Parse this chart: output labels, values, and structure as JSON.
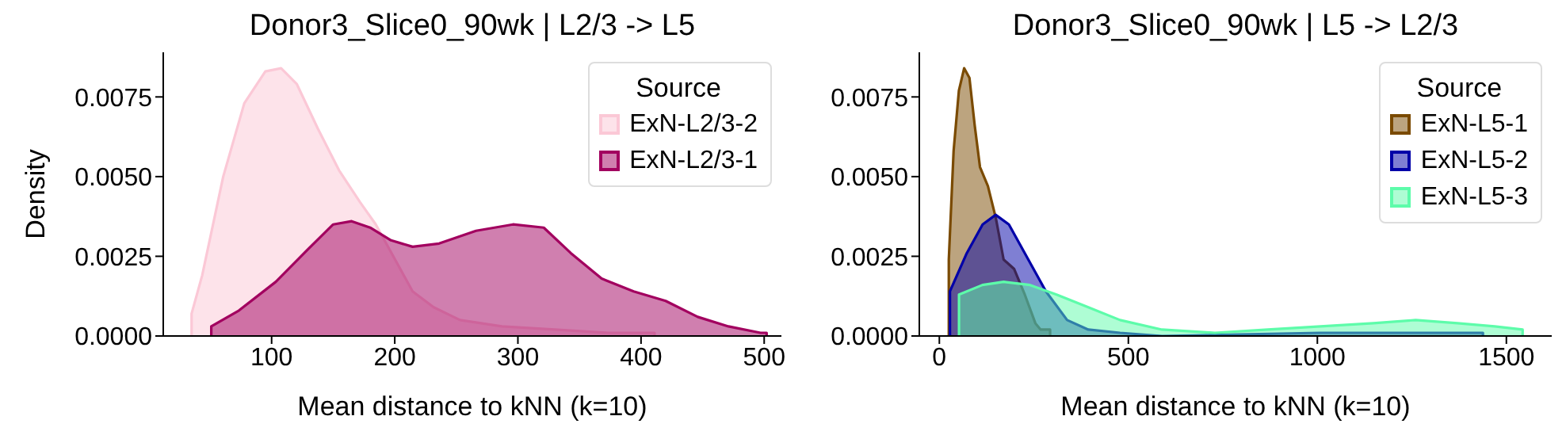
{
  "chart_data": [
    {
      "type": "area",
      "title": "Donor3_Slice0_90wk | L2/3 -> L5",
      "xlabel": "Mean distance to kNN (k=10)",
      "ylabel": "Density",
      "legend_title": "Source",
      "legend": "top right",
      "xlim": [
        12,
        514
      ],
      "xticks": [
        100,
        200,
        300,
        400,
        500
      ],
      "ylim": [
        0,
        0.0089
      ],
      "yticks": [
        {
          "value": 0,
          "label": "0.0000"
        },
        {
          "value": 0.0025,
          "label": "0.0025"
        },
        {
          "value": 0.005,
          "label": "0.0050"
        },
        {
          "value": 0.0075,
          "label": "0.0075"
        }
      ],
      "series": [
        {
          "name": "ExN-L2/3-2",
          "color": "#fbc8d6",
          "x": [
            35,
            35,
            43.6,
            60.7,
            77.8,
            94.9,
            107.7,
            120.5,
            137.6,
            154.7,
            171.8,
            184.6,
            197.4,
            214.5,
            231.6,
            253,
            287,
            330,
            373,
            411,
            411
          ],
          "values": [
            0,
            0.0007,
            0.0019,
            0.005,
            0.0073,
            0.0083,
            0.0084,
            0.0079,
            0.0065,
            0.0052,
            0.0042,
            0.0035,
            0.0026,
            0.0014,
            0.0009,
            0.0005,
            0.0003,
            0.0002,
            0.0001,
            0.0001,
            0
          ]
        },
        {
          "name": "ExN-L2/3-1",
          "color": "#a2005f",
          "x": [
            51,
            51,
            73.5,
            103.4,
            129,
            150,
            165,
            180,
            197,
            214.5,
            236,
            266,
            296,
            321,
            343,
            368,
            394,
            420,
            446,
            471,
            497,
            502,
            502
          ],
          "values": [
            0,
            0.0003,
            0.0008,
            0.0017,
            0.0027,
            0.0035,
            0.0036,
            0.0034,
            0.003,
            0.0028,
            0.0029,
            0.0033,
            0.0035,
            0.0034,
            0.0026,
            0.0018,
            0.0014,
            0.0011,
            0.0006,
            0.0003,
            0.0001,
            0.0001,
            0
          ]
        }
      ]
    },
    {
      "type": "area",
      "title": "Donor3_Slice0_90wk | L5 -> L2/3",
      "xlabel": "Mean distance to kNN (k=10)",
      "legend_title": "Source",
      "legend": "top right",
      "xlim": [
        -53,
        1620
      ],
      "xticks": [
        0,
        500,
        1000,
        1500
      ],
      "ylim": [
        0,
        0.0089
      ],
      "yticks": [
        {
          "value": 0,
          "label": "0.0000"
        },
        {
          "value": 0.0025,
          "label": "0.0025"
        },
        {
          "value": 0.005,
          "label": "0.0050"
        },
        {
          "value": 0.0075,
          "label": "0.0075"
        }
      ],
      "series": [
        {
          "name": "ExN-L5-1",
          "color": "#7a4a00",
          "x": [
            25,
            25,
            37.7,
            51.7,
            65.6,
            79.6,
            93.6,
            107.5,
            128.5,
            149.4,
            170,
            198,
            226,
            254,
            268,
            293,
            293
          ],
          "values": [
            0,
            0.0024,
            0.0058,
            0.0077,
            0.0084,
            0.0081,
            0.0066,
            0.0053,
            0.0047,
            0.0037,
            0.0024,
            0.0021,
            0.0013,
            0.0004,
            0.0002,
            0.0002,
            0
          ]
        },
        {
          "name": "ExN-L5-2",
          "color": "#0000a8",
          "x": [
            28,
            28,
            72.6,
            114.5,
            149,
            184,
            226,
            282,
            338,
            394,
            478,
            589,
            1008,
            1288,
            1438,
            1438
          ],
          "values": [
            0,
            0.0014,
            0.0026,
            0.0035,
            0.0038,
            0.0035,
            0.0026,
            0.0014,
            0.0005,
            0.0002,
            0.0001,
            0,
            0.0001,
            0.0001,
            0.0001,
            0
          ]
        },
        {
          "name": "ExN-L5-3",
          "color": "#5dfcaa",
          "x": [
            52,
            52,
            114,
            170,
            240,
            310,
            394,
            478,
            589,
            729,
            869,
            1008,
            1148,
            1260,
            1371,
            1469,
            1543,
            1543
          ],
          "values": [
            0,
            0.0013,
            0.0016,
            0.0017,
            0.0016,
            0.0013,
            0.0009,
            0.0005,
            0.0002,
            0.0001,
            0.0002,
            0.0003,
            0.0004,
            0.0005,
            0.0004,
            0.0003,
            0.0002,
            0
          ]
        }
      ]
    }
  ]
}
